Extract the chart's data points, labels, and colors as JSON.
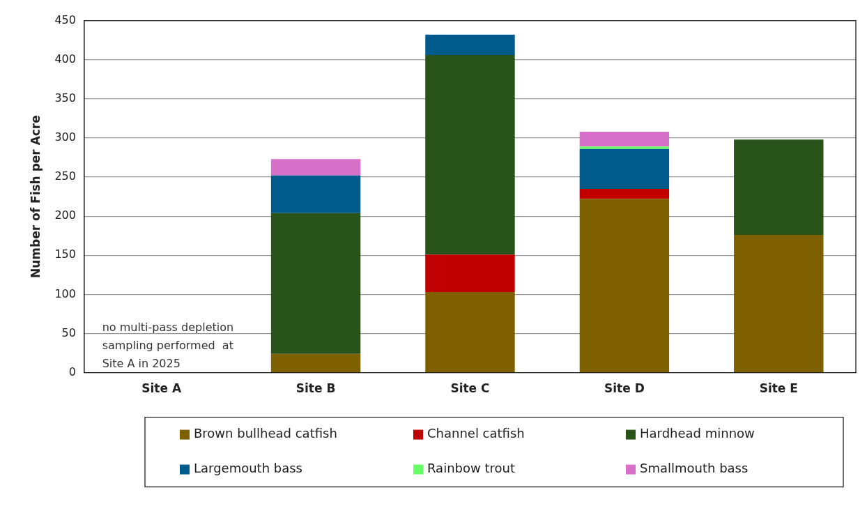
{
  "chart_data": {
    "type": "bar",
    "stacked": true,
    "ylabel": "Number of Fish per Acre",
    "categories": [
      "Site A",
      "Site B",
      "Site C",
      "Site D",
      "Site E"
    ],
    "series": [
      {
        "name": "Brown bullhead catfish",
        "color": "#7f6000",
        "values": [
          null,
          24,
          103,
          222,
          176
        ]
      },
      {
        "name": "Channel catfish",
        "color": "#c00000",
        "values": [
          null,
          0,
          48,
          13,
          0
        ]
      },
      {
        "name": "Hardhead minnow",
        "color": "#285319",
        "values": [
          null,
          180,
          255,
          0,
          122
        ]
      },
      {
        "name": "Largemouth bass",
        "color": "#005b8c",
        "values": [
          null,
          48,
          26,
          51,
          0
        ]
      },
      {
        "name": "Rainbow trout",
        "color": "#66ff66",
        "values": [
          null,
          0,
          0,
          3,
          0
        ]
      },
      {
        "name": "Smallmouth bass",
        "color": "#d670c8",
        "values": [
          null,
          21,
          0,
          19,
          0
        ]
      }
    ],
    "ylim": [
      0,
      450
    ],
    "yticks": [
      0,
      50,
      100,
      150,
      200,
      250,
      300,
      350,
      400,
      450
    ],
    "grid": "y",
    "legend": "bottom",
    "annotations": [
      "no multi-pass depletion\nsampling performed  at\nSite A in 2025"
    ]
  }
}
